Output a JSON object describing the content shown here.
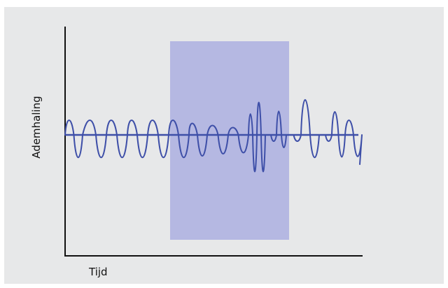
{
  "diagram": {
    "ylabel": "Ademhaling",
    "xlabel": "Tijd",
    "colors": {
      "background": "#e7e8e9",
      "highlight": "#b5b8e2",
      "waveform": "#3e4fa8",
      "axis": "#111111"
    }
  }
}
